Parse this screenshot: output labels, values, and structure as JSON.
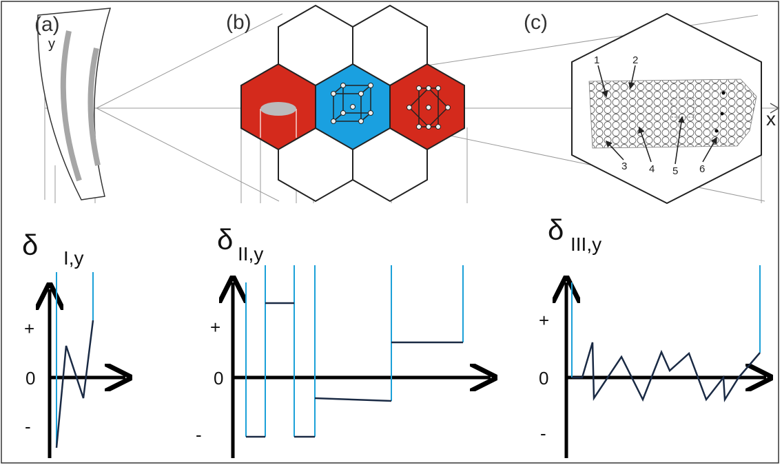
{
  "panels": [
    {
      "label": "(a)"
    },
    {
      "label": "(b)"
    },
    {
      "label": "(c)"
    }
  ],
  "axes": {
    "y": "y",
    "x": "x"
  },
  "grain_labels": [
    "1",
    "2",
    "3",
    "4",
    "5",
    "6"
  ],
  "plots": [
    {
      "symbol": "δ",
      "subscript": "I,y",
      "plus": "+",
      "zero": "0",
      "minus": "-"
    },
    {
      "symbol": "δ",
      "subscript": "II,y",
      "plus": "+",
      "zero": "0",
      "minus": "-"
    },
    {
      "symbol": "δ",
      "subscript": "III,y",
      "plus": "+",
      "zero": "0",
      "minus": "-"
    }
  ]
}
